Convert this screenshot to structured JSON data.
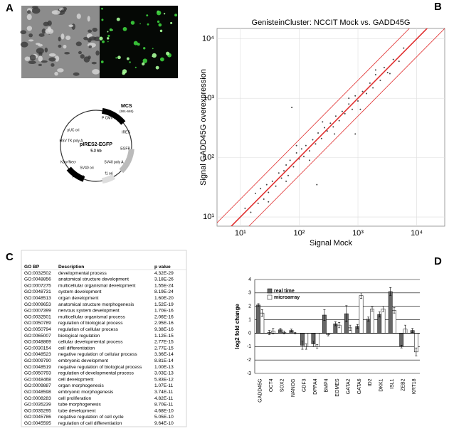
{
  "panel_labels": [
    "A",
    "B",
    "C",
    "D"
  ],
  "plasmid": {
    "name": "pIRES2-EGFP",
    "size": "5.3 kb",
    "labels": [
      "MCS",
      "(591-665)",
      "P CMV IE",
      "pUC ori",
      "HSV TK poly A",
      "IRES",
      "EGFP",
      "Kanʳ/Neoʳ",
      "SV40 ori",
      "P SV40",
      "SV40 poly A",
      "f1 ori"
    ]
  },
  "table": {
    "header": [
      "GO BP",
      "Description",
      "p value"
    ],
    "rows": [
      [
        "GO:0032502",
        "developmental process",
        "4.32E-29"
      ],
      [
        "GO:0048856",
        "anatomical structure development",
        "3.18E-26"
      ],
      [
        "GO:0007275",
        "multicellular organismal development",
        "1.55E-24"
      ],
      [
        "GO:0048731",
        "system development",
        "8.19E-24"
      ],
      [
        "GO:0048513",
        "organ development",
        "1.60E-20"
      ],
      [
        "GO:0009653",
        "anatomical structure morphogenesis",
        "1.52E-19"
      ],
      [
        "GO:0007399",
        "nervous system development",
        "1.70E-16"
      ],
      [
        "GO:0032501",
        "multicellular organismal process",
        "2.06E-16"
      ],
      [
        "GO:0050789",
        "regulation of biological process",
        "2.95E-16"
      ],
      [
        "GO:0050794",
        "regulation of cellular process",
        "9.38E-16"
      ],
      [
        "GO:0065007",
        "biological regulation",
        "1.12E-15"
      ],
      [
        "GO:0048869",
        "cellular developmental process",
        "2.77E-15"
      ],
      [
        "GO:0030154",
        "cell differentiation",
        "2.77E-15"
      ],
      [
        "GO:0048523",
        "negative regulation of cellular process",
        "3.36E-14"
      ],
      [
        "GO:0009790",
        "embryonic development",
        "8.81E-14"
      ],
      [
        "GO:0048519",
        "negative regulation of biological process",
        "1.00E-13"
      ],
      [
        "GO:0050793",
        "regulation of developmental process",
        "3.03E-13"
      ],
      [
        "GO:0048468",
        "cell development",
        "5.83E-12"
      ],
      [
        "GO:0009887",
        "organ morphogenesis",
        "1.07E-11"
      ],
      [
        "GO:0048598",
        "embryonic morphogenesis",
        "3.74E-11"
      ],
      [
        "GO:0008283",
        "cell proliferation",
        "4.82E-11"
      ],
      [
        "GO:0035239",
        "tube morphogenesis",
        "8.70E-11"
      ],
      [
        "GO:0035295",
        "tube development",
        "4.68E-10"
      ],
      [
        "GO:0045786",
        "negative regulation of cell cycle",
        "5.05E-10"
      ],
      [
        "GO:0045595",
        "regulation of cell differentiation",
        "9.64E-10"
      ]
    ]
  },
  "chart_data": [
    {
      "type": "scatter",
      "title": "GenisteinCluster: NCCIT Mock vs. GADD45G",
      "xlabel": "Signal Mock",
      "ylabel": "Signal GADD45G overexpression",
      "xscale": "log",
      "yscale": "log",
      "color": "#444444",
      "grid": true,
      "xlim": [
        4,
        30000
      ],
      "ylim": [
        7,
        15000
      ],
      "xticks": [
        {
          "value": 10,
          "label": "10¹"
        },
        {
          "value": 100,
          "label": "10²"
        },
        {
          "value": 1000,
          "label": "10³"
        },
        {
          "value": 10000,
          "label": "10⁴"
        }
      ],
      "yticks": [
        {
          "value": 10,
          "label": "10¹"
        },
        {
          "value": 100,
          "label": "10²"
        },
        {
          "value": 1000,
          "label": "10³"
        },
        {
          "value": 10000,
          "label": "10⁴"
        }
      ],
      "ratio_lines": [
        0.5,
        1,
        2
      ],
      "ratio_line_color": "#e03030",
      "x": [
        12,
        15,
        18,
        20,
        22,
        25,
        28,
        30,
        35,
        40,
        45,
        50,
        55,
        60,
        65,
        70,
        80,
        90,
        100,
        110,
        120,
        130,
        150,
        170,
        190,
        210,
        240,
        270,
        300,
        340,
        380,
        420,
        480,
        540,
        600,
        700,
        800,
        900,
        1000,
        1200,
        1400,
        1600,
        1800,
        2000,
        2400,
        2800,
        3200,
        4000,
        5000,
        6000,
        30,
        60,
        90,
        150,
        250,
        400,
        700,
        1100,
        2000,
        3500,
        75,
        900,
        200
      ],
      "values": [
        14,
        12,
        25,
        17,
        30,
        20,
        35,
        26,
        40,
        33,
        55,
        45,
        60,
        75,
        50,
        90,
        70,
        120,
        95,
        140,
        105,
        160,
        130,
        200,
        170,
        260,
        210,
        320,
        280,
        380,
        330,
        500,
        420,
        600,
        550,
        800,
        650,
        1100,
        900,
        1300,
        1200,
        1800,
        1500,
        2500,
        2000,
        3300,
        2700,
        4500,
        4200,
        7000,
        18,
        40,
        160,
        90,
        400,
        250,
        1000,
        650,
        3000,
        2600,
        700,
        250,
        35
      ]
    },
    {
      "type": "bar",
      "ylabel": "log2 fold change",
      "grid": true,
      "categories": [
        "GADD45G",
        "OCT4",
        "SOX2",
        "NANOG",
        "GDF3",
        "DPPA4",
        "BMP4",
        "EOMES",
        "GATA2",
        "GATA6",
        "ID2",
        "DKK1",
        "ISL1",
        "ZEB2",
        "KRT18"
      ],
      "ylim": [
        -3,
        4
      ],
      "yticks": [
        -3,
        -2,
        -1,
        0,
        1,
        2,
        3,
        4
      ],
      "legend": "top-left",
      "series": [
        {
          "name": "real time",
          "color": "#666666",
          "values": [
            2.1,
            0.05,
            0.25,
            0.2,
            -0.9,
            -0.8,
            1.35,
            0.7,
            1.45,
            0.5,
            1.05,
            1.4,
            3.1,
            -1.0,
            0.2
          ],
          "errors": [
            0.1,
            0.15,
            0.1,
            0.1,
            0.3,
            0.2,
            0.4,
            0.15,
            0.6,
            0.15,
            0.15,
            0.2,
            0.3,
            0.1,
            0.15
          ]
        },
        {
          "name": "microarray",
          "color": "#ffffff",
          "values": [
            1.5,
            0.15,
            0.05,
            0.0,
            -1.0,
            -1.0,
            -0.1,
            0.6,
            0.4,
            2.8,
            1.8,
            1.8,
            1.7,
            0.3,
            -1.4
          ],
          "errors": [
            0.25,
            0.2,
            0.1,
            0.05,
            0.2,
            0.15,
            0.1,
            0.2,
            0.2,
            0.2,
            0.15,
            0.2,
            0.2,
            0.3,
            0.3
          ]
        }
      ]
    }
  ]
}
